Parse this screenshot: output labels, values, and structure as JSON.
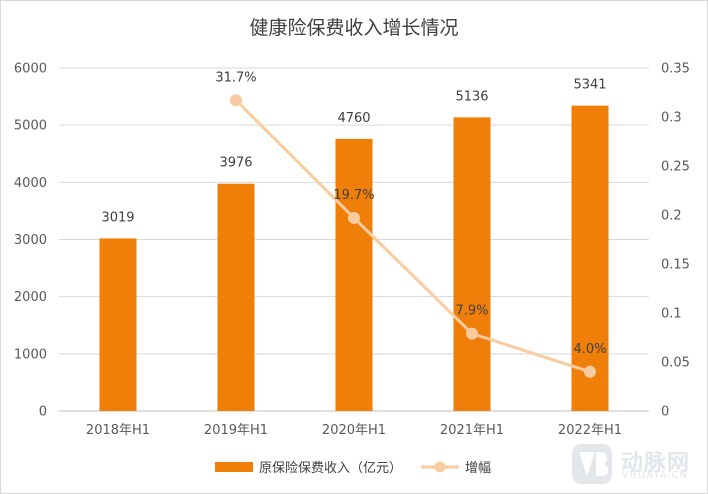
{
  "chart_data": {
    "type": "bar",
    "title": "健康险保费收入增长情况",
    "categories": [
      "2018年H1",
      "2019年H1",
      "2020年H1",
      "2021年H1",
      "2022年H1"
    ],
    "series": [
      {
        "name": "原保险保费收入（亿元）",
        "type": "bar",
        "axis": "left",
        "values": [
          3019,
          3976,
          4760,
          5136,
          5341
        ],
        "labels": [
          "3019",
          "3976",
          "4760",
          "5136",
          "5341"
        ],
        "color": "#f07f09"
      },
      {
        "name": "增幅",
        "type": "line",
        "axis": "right",
        "values": [
          null,
          0.317,
          0.197,
          0.079,
          0.04
        ],
        "labels": [
          "",
          "31.7%",
          "19.7%",
          "7.9%",
          "4.0%"
        ],
        "color": "#f8cba0"
      }
    ],
    "left_axis": {
      "ylim": [
        0,
        6000
      ],
      "ticks": [
        "0",
        "1000",
        "2000",
        "3000",
        "4000",
        "5000",
        "6000"
      ]
    },
    "right_axis": {
      "ylim": [
        0,
        0.35
      ],
      "ticks": [
        "0",
        "0.05",
        "0.1",
        "0.15",
        "0.2",
        "0.25",
        "0.3",
        "0.35"
      ]
    },
    "grid": true,
    "legend": "bottom"
  },
  "watermark": {
    "name": "动脉网",
    "sub": "VBDATA.CN"
  }
}
